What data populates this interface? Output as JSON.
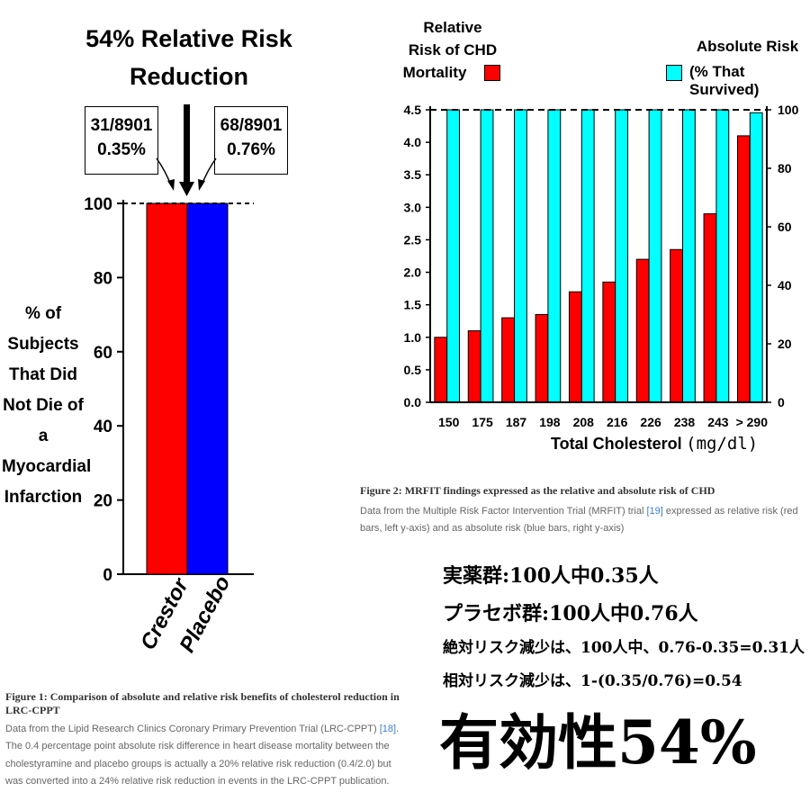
{
  "fig1": {
    "title_line1": "54% Relative Risk",
    "title_line2": "Reduction",
    "box_left_line1": "31/8901",
    "box_left_line2": "0.35%",
    "box_right_line1": "68/8901",
    "box_right_line2": "0.76%",
    "ylabel_lines": [
      "% of",
      "Subjects",
      "That Did",
      "Not Die of a",
      "Myocardial",
      "Infarction"
    ],
    "caption_title": "Figure 1: Comparison of absolute and relative risk benefits of cholesterol reduction in LRC-CPPT",
    "caption_text_1": "Data from the Lipid Research Clinics Coronary Primary Prevention Trial (LRC-CPPT) ",
    "caption_ref": "[18]",
    "caption_text_2": ". The 0.4 percentage point absolute risk difference in heart disease mortality between the cholestyramine and placebo groups is actually a 20% relative risk reduction (0.4/2.0) but was converted into a 24% relative risk reduction in events in the LRC-CPPT publication."
  },
  "fig2": {
    "legend_left_lines": [
      "Relative",
      "Risk of CHD",
      "Mortality"
    ],
    "legend_right_line1": "Absolute Risk",
    "legend_right_line2": "(% That Survived)",
    "xlabel": "Total Cholesterol",
    "xlabel_unit": "(mg/dl)",
    "caption_title": "Figure 2: MRFIT findings expressed as the relative and absolute risk of CHD",
    "caption_text_1": "Data from the Multiple Risk Factor Intervention Trial (MRFIT) trial ",
    "caption_ref": "[19]",
    "caption_text_2": " expressed as relative risk (red bars, left y-axis) and as absolute risk (blue bars, right y-axis)"
  },
  "japanese": {
    "line1": "実薬群:100人中0.35人",
    "line2": "プラセボ群:100人中0.76人",
    "line3": "絶対リスク減少は、100人中、0.76-0.35=0.31人",
    "line4": "相対リスク減少は、1-(0.35/0.76)=0.54",
    "big": "有効性54%"
  },
  "colors": {
    "red": "#ff0000",
    "blue": "#0000ff",
    "cyan": "#00ffff"
  },
  "chart_data": [
    {
      "type": "bar",
      "categories": [
        "Crestor",
        "Placebo"
      ],
      "values": [
        100,
        100
      ],
      "ylim": [
        0,
        100
      ],
      "yticks": [
        "0",
        "20",
        "40",
        "60",
        "80",
        "100"
      ],
      "reference_line": 100,
      "colors": [
        "#ff0000",
        "#0000ff"
      ]
    },
    {
      "type": "bar",
      "categories": [
        "150",
        "175",
        "187",
        "198",
        "208",
        "216",
        "226",
        "238",
        "243",
        "> 290"
      ],
      "series": [
        {
          "values": [
            1.0,
            1.1,
            1.3,
            1.35,
            1.7,
            1.85,
            2.2,
            2.35,
            2.9,
            4.1
          ],
          "axis": "left",
          "color": "#ff0000"
        },
        {
          "values": [
            100,
            100,
            100,
            100,
            100,
            100,
            100,
            100,
            100,
            99
          ],
          "axis": "right",
          "color": "#00ffff"
        }
      ],
      "ylim_left": [
        0,
        4.5
      ],
      "yticks_left": [
        "0.0",
        "0.5",
        "1.0",
        "1.5",
        "2.0",
        "2.5",
        "3.0",
        "3.5",
        "4.0",
        "4.5"
      ],
      "ylim_right": [
        0,
        100
      ],
      "yticks_right": [
        "0",
        "20",
        "40",
        "60",
        "80",
        "100"
      ],
      "reference_line": 4.5
    }
  ]
}
